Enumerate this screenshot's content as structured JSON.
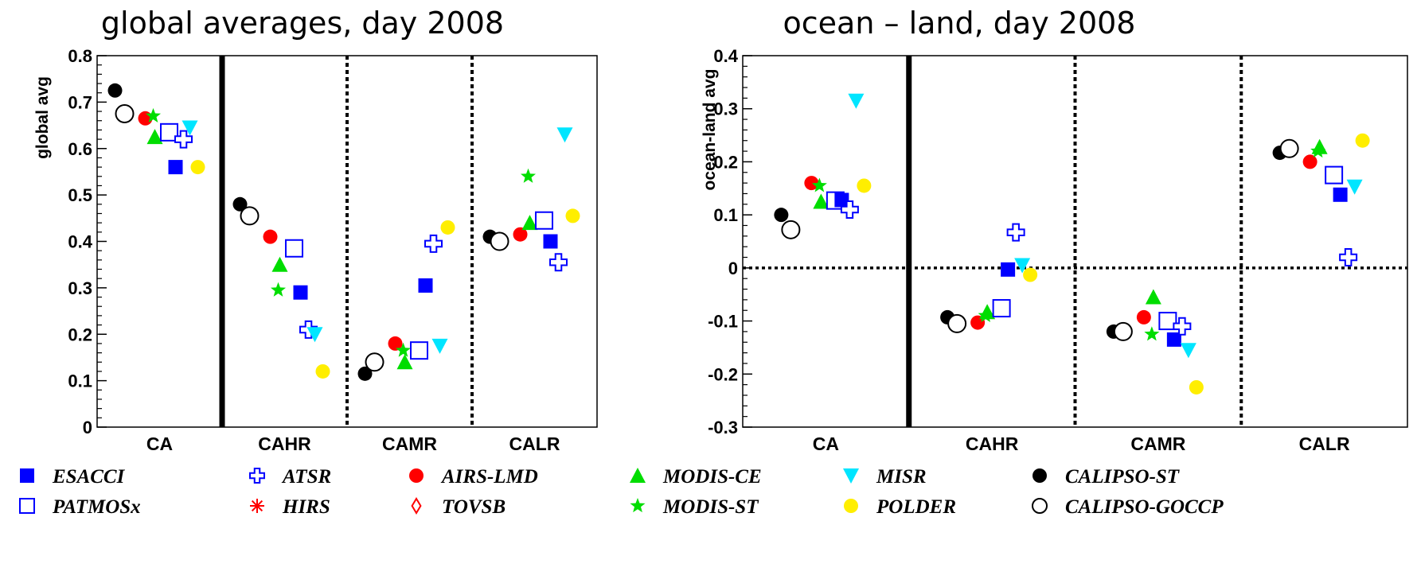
{
  "chart_data": [
    {
      "type": "scatter",
      "title": "global averages, day 2008",
      "ylabel": "global avg",
      "ylim": [
        0,
        0.8
      ],
      "yticks": [
        "0",
        "0.1",
        "0.2",
        "0.3",
        "0.4",
        "0.5",
        "0.6",
        "0.7",
        "0.8"
      ],
      "categories": [
        "CA",
        "CAHR",
        "CAMR",
        "CALR"
      ],
      "reference_line": null,
      "series": [
        {
          "name": "ESACCI",
          "values": [
            0.56,
            0.29,
            0.305,
            0.4
          ]
        },
        {
          "name": "PATMOSx",
          "values": [
            0.635,
            0.385,
            0.165,
            0.445
          ]
        },
        {
          "name": "ATSR",
          "values": [
            0.62,
            0.21,
            0.395,
            0.355
          ]
        },
        {
          "name": "AIRS-LMD",
          "values": [
            0.665,
            0.41,
            0.18,
            0.415
          ]
        },
        {
          "name": "MODIS-CE",
          "values": [
            0.625,
            0.35,
            0.14,
            0.44
          ]
        },
        {
          "name": "MODIS-ST",
          "values": [
            0.67,
            0.295,
            0.165,
            0.54
          ]
        },
        {
          "name": "MISR",
          "values": [
            0.645,
            0.2,
            0.175,
            0.63
          ]
        },
        {
          "name": "POLDER",
          "values": [
            0.56,
            0.12,
            0.43,
            0.455
          ]
        },
        {
          "name": "CALIPSO-ST",
          "values": [
            0.725,
            0.48,
            0.115,
            0.41
          ]
        },
        {
          "name": "CALIPSO-GOCCP",
          "values": [
            0.675,
            0.455,
            0.14,
            0.4
          ]
        }
      ]
    },
    {
      "type": "scatter",
      "title": "ocean – land,  day 2008",
      "ylabel": "ocean-land avg",
      "ylim": [
        -0.3,
        0.4
      ],
      "yticks": [
        "-0.3",
        "-0.2",
        "-0.1",
        "0",
        "0.1",
        "0.2",
        "0.3",
        "0.4"
      ],
      "categories": [
        "CA",
        "CAHR",
        "CAMR",
        "CALR"
      ],
      "reference_line": 0,
      "series": [
        {
          "name": "ESACCI",
          "values": [
            0.128,
            -0.003,
            -0.135,
            0.138
          ]
        },
        {
          "name": "PATMOSx",
          "values": [
            0.127,
            -0.076,
            -0.1,
            0.175
          ]
        },
        {
          "name": "ATSR",
          "values": [
            0.11,
            0.067,
            -0.11,
            0.02
          ]
        },
        {
          "name": "AIRS-LMD",
          "values": [
            0.16,
            -0.103,
            -0.093,
            0.2
          ]
        },
        {
          "name": "MODIS-CE",
          "values": [
            0.125,
            -0.083,
            -0.055,
            0.228
          ]
        },
        {
          "name": "MODIS-ST",
          "values": [
            0.155,
            -0.09,
            -0.125,
            0.22
          ]
        },
        {
          "name": "MISR",
          "values": [
            0.315,
            0.005,
            -0.155,
            0.153
          ]
        },
        {
          "name": "POLDER",
          "values": [
            0.155,
            -0.013,
            -0.225,
            0.24
          ]
        },
        {
          "name": "CALIPSO-ST",
          "values": [
            0.1,
            -0.093,
            -0.12,
            0.217
          ]
        },
        {
          "name": "CALIPSO-GOCCP",
          "values": [
            0.072,
            -0.105,
            -0.12,
            0.225
          ]
        }
      ]
    }
  ],
  "legend": [
    {
      "name": "ESACCI",
      "marker": "square-filled",
      "color": "#0000ff"
    },
    {
      "name": "ATSR",
      "marker": "cross-open",
      "color": "#0000ff"
    },
    {
      "name": "AIRS-LMD",
      "marker": "circle-filled",
      "color": "#ff0000"
    },
    {
      "name": "MODIS-CE",
      "marker": "triangle-up-filled",
      "color": "#00dd00"
    },
    {
      "name": "MISR",
      "marker": "triangle-down-filled",
      "color": "#00e5ff"
    },
    {
      "name": "CALIPSO-ST",
      "marker": "circle-filled",
      "color": "#000000"
    },
    {
      "name": "PATMOSx",
      "marker": "square-open",
      "color": "#0000ff"
    },
    {
      "name": "HIRS",
      "marker": "asterisk",
      "color": "#ff0000"
    },
    {
      "name": "TOVSB",
      "marker": "diamond-open",
      "color": "#ff0000"
    },
    {
      "name": "MODIS-ST",
      "marker": "star-filled",
      "color": "#00dd00"
    },
    {
      "name": "POLDER",
      "marker": "circle-filled",
      "color": "#ffee00"
    },
    {
      "name": "CALIPSO-GOCCP",
      "marker": "circle-open",
      "color": "#000000"
    }
  ]
}
